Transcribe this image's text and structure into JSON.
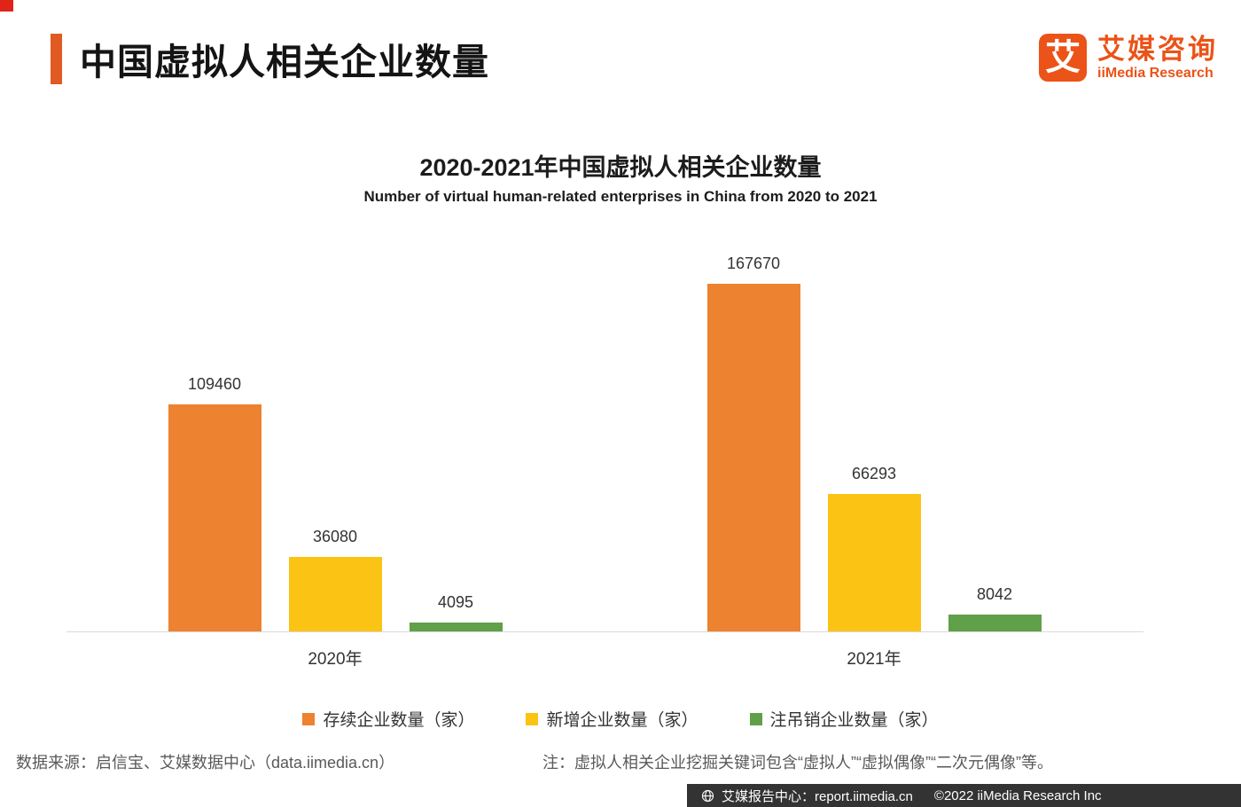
{
  "header": {
    "title": "中国虚拟人相关企业数量",
    "logo": {
      "icon_char": "艾",
      "name_cn": "艾媒咨询",
      "name_en": "iiMedia Research",
      "brand_color": "#EB5318"
    }
  },
  "chart_data": {
    "type": "bar",
    "title": "2020-2021年中国虚拟人相关企业数量",
    "subtitle": "Number of virtual human-related enterprises in China from 2020 to 2021",
    "categories": [
      "2020年",
      "2021年"
    ],
    "series": [
      {
        "name": "存续企业数量（家）",
        "color": "#ED8230",
        "values": [
          109460,
          167670
        ]
      },
      {
        "name": "新增企业数量（家）",
        "color": "#FBC314",
        "values": [
          36080,
          66293
        ]
      },
      {
        "name": "注吊销企业数量（家）",
        "color": "#5FA048",
        "values": [
          4095,
          8042
        ]
      }
    ],
    "ylim": [
      0,
      175000
    ],
    "grid": false,
    "legend_position": "bottom",
    "value_labels": true
  },
  "footer": {
    "source": "数据来源：启信宝、艾媒数据中心（data.iimedia.cn）",
    "note": "注：虚拟人相关企业挖掘关键词包含“虚拟人”“虚拟偶像”“二次元偶像”等。",
    "bottom_bar": {
      "report_center": "艾媒报告中心：report.iimedia.cn",
      "copyright": "©2022 iiMedia Research Inc"
    }
  }
}
